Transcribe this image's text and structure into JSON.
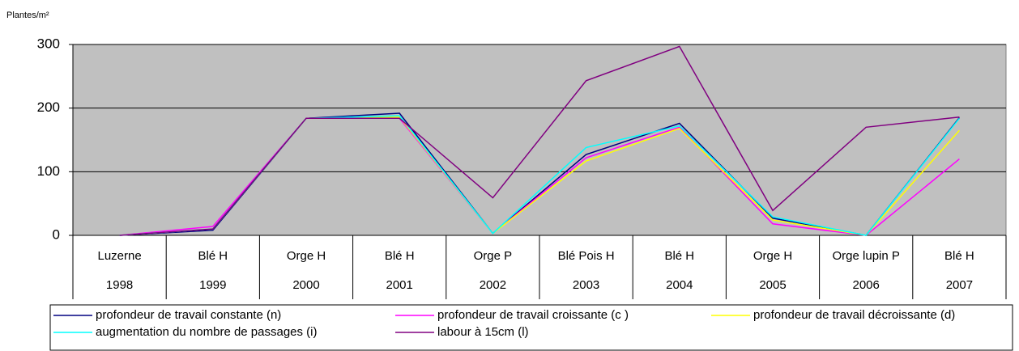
{
  "chart_data": {
    "type": "line",
    "y_axis_label": "Plantes/m²",
    "categories": [
      "Luzerne",
      "Blé H",
      "Orge H",
      "Blé H",
      "Orge P",
      "Blé Pois H",
      "Blé H",
      "Orge H",
      "Orge lupin P",
      "Blé H"
    ],
    "category_years": [
      "1998",
      "1999",
      "2000",
      "2001",
      "2002",
      "2003",
      "2004",
      "2005",
      "2006",
      "2007"
    ],
    "ylim": [
      0,
      300
    ],
    "yticks": [
      0,
      100,
      200,
      300
    ],
    "grid": true,
    "series": [
      {
        "name": "profondeur de travail constante (n)",
        "color": "#000080",
        "values": [
          0,
          8,
          184,
          192,
          3,
          127,
          176,
          27,
          0,
          185
        ]
      },
      {
        "name": "profondeur de travail croissante (c )",
        "color": "#ff00ff",
        "values": [
          0,
          14,
          184,
          184,
          3,
          122,
          170,
          18,
          0,
          120
        ]
      },
      {
        "name": "profondeur de travail décroissante (d)",
        "color": "#ffff00",
        "values": [
          0,
          10,
          184,
          186,
          3,
          117,
          168,
          24,
          0,
          165
        ]
      },
      {
        "name": "augmentation du nombre de passages (i)",
        "color": "#00ffff",
        "values": [
          0,
          10,
          184,
          188,
          3,
          138,
          172,
          29,
          0,
          184
        ]
      },
      {
        "name": "labour à 15cm (l)",
        "color": "#800080",
        "values": [
          0,
          10,
          184,
          184,
          59,
          243,
          297,
          39,
          170,
          186
        ]
      }
    ],
    "legend": "bottom"
  }
}
